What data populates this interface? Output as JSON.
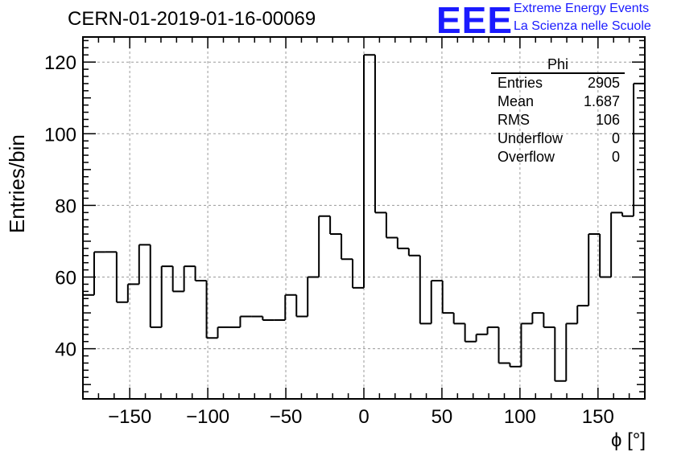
{
  "title": "CERN-01-2019-01-16-00069",
  "logo": {
    "mark": "EEE",
    "line1": "Extreme Energy Events",
    "line2": "La Scienza nelle Scuole"
  },
  "stats": {
    "title": "Phi",
    "rows": [
      {
        "label": "Entries",
        "value": "2905"
      },
      {
        "label": "Mean",
        "value": "1.687"
      },
      {
        "label": "RMS",
        "value": "106"
      },
      {
        "label": "Underflow",
        "value": "0"
      },
      {
        "label": "Overflow",
        "value": "0"
      }
    ]
  },
  "chart_data": {
    "type": "bar",
    "histogram": true,
    "title": "CERN-01-2019-01-16-00069",
    "xlabel": "ϕ [°]",
    "ylabel": "Entries/bin",
    "xlim": [
      -180,
      180
    ],
    "ylim": [
      26,
      127
    ],
    "bin_width": 7.2,
    "x_ticks": [
      -150,
      -100,
      -50,
      0,
      50,
      100,
      150
    ],
    "x_tick_labels": [
      "−150",
      "−100",
      "−50",
      "0",
      "50",
      "100",
      "150"
    ],
    "y_ticks": [
      40,
      60,
      80,
      100,
      120
    ],
    "y_tick_labels": [
      "40",
      "60",
      "80",
      "100",
      "120"
    ],
    "grid": true,
    "values": [
      55,
      67,
      67,
      53,
      58,
      69,
      46,
      63,
      56,
      63,
      59,
      43,
      46,
      46,
      49,
      49,
      48,
      48,
      55,
      49,
      60,
      77,
      72,
      65,
      57,
      122,
      78,
      71,
      68,
      66,
      47,
      59,
      50,
      47,
      42,
      44,
      46,
      36,
      35,
      47,
      50,
      46,
      31,
      47,
      52,
      72,
      60,
      78,
      77,
      114
    ]
  }
}
